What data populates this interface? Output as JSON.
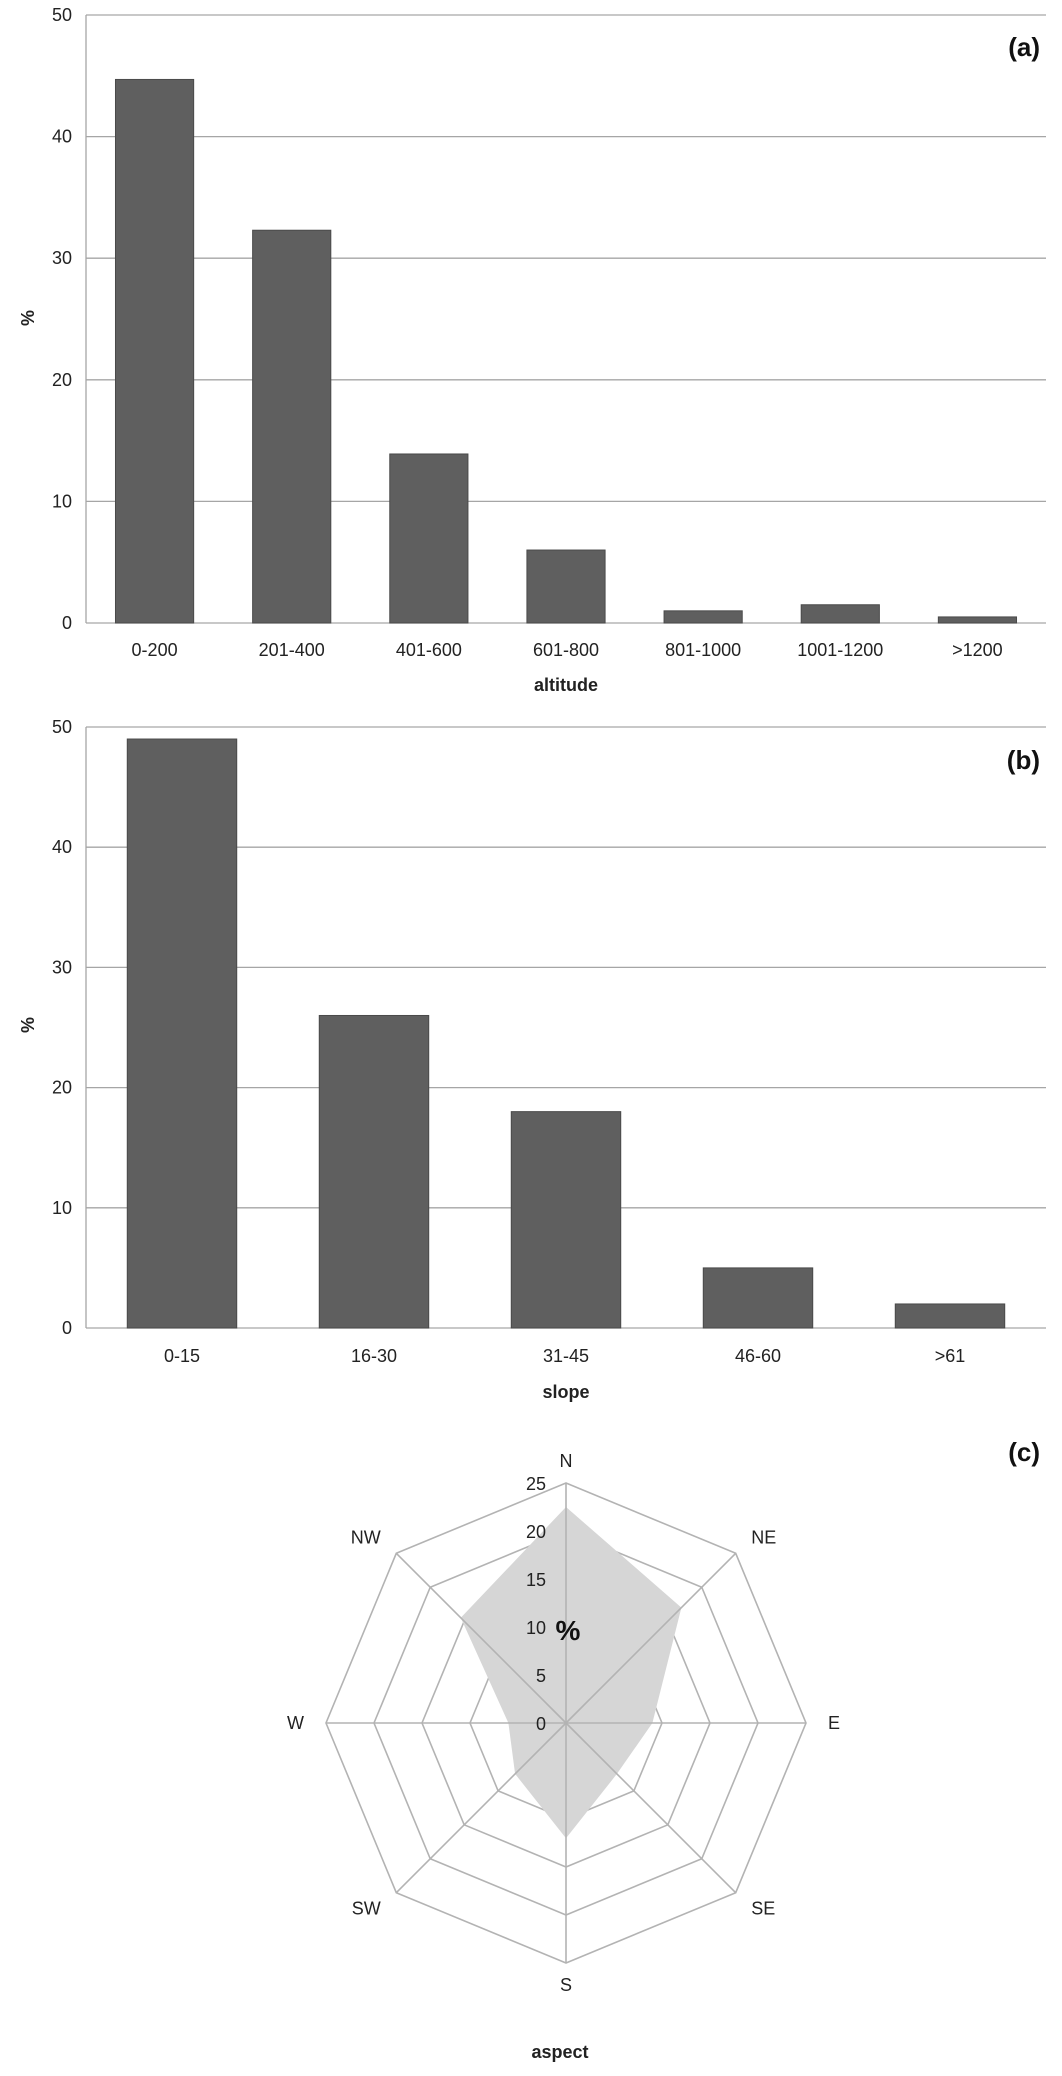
{
  "colors": {
    "bar": "#5f5f5f",
    "grid": "#a6a6a6",
    "axis": "#a6a6a6",
    "radar_fill": "#d6d6d6",
    "radar_grid": "#b3b3b3"
  },
  "chart_data": [
    {
      "id": "a",
      "type": "bar",
      "panel_label": "(a)",
      "categories": [
        "0-200",
        "201-400",
        "401-600",
        "601-800",
        "801-1000",
        "1001-1200",
        ">1200"
      ],
      "values": [
        44.7,
        32.3,
        13.9,
        6.0,
        1.0,
        1.5,
        0.5
      ],
      "xlabel": "altitude",
      "ylabel": "%",
      "ylim": [
        0,
        50
      ],
      "yticks": [
        "0",
        "10",
        "20",
        "30",
        "40",
        "50"
      ],
      "grid": true
    },
    {
      "id": "b",
      "type": "bar",
      "panel_label": "(b)",
      "categories": [
        "0-15",
        "16-30",
        "31-45",
        "46-60",
        ">61"
      ],
      "values": [
        49,
        26,
        18,
        5,
        2
      ],
      "xlabel": "slope",
      "ylabel": "%",
      "ylim": [
        0,
        50
      ],
      "yticks": [
        "0",
        "10",
        "20",
        "30",
        "40",
        "50"
      ],
      "grid": true
    },
    {
      "id": "c",
      "type": "radar",
      "panel_label": "(c)",
      "categories": [
        "N",
        "NE",
        "E",
        "SE",
        "S",
        "SW",
        "W",
        "NW"
      ],
      "values": [
        22.5,
        17,
        9,
        7.5,
        12,
        7.5,
        6,
        15.5
      ],
      "rmax": 25,
      "rticks": [
        "0",
        "5",
        "10",
        "15",
        "20",
        "25"
      ],
      "unit_label": "%",
      "xlabel": "aspect"
    }
  ]
}
